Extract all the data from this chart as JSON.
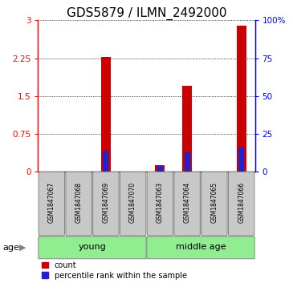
{
  "title": "GDS5879 / ILMN_2492000",
  "samples": [
    "GSM1847067",
    "GSM1847068",
    "GSM1847069",
    "GSM1847070",
    "GSM1847063",
    "GSM1847064",
    "GSM1847065",
    "GSM1847066"
  ],
  "count_values": [
    0.0,
    0.0,
    2.27,
    0.0,
    0.13,
    1.7,
    0.0,
    2.9
  ],
  "percentile_values": [
    0.0,
    0.0,
    14.0,
    0.0,
    4.0,
    13.0,
    0.0,
    16.0
  ],
  "groups": [
    {
      "label": "young",
      "start": 0,
      "end": 4,
      "color": "#90EE90"
    },
    {
      "label": "middle age",
      "start": 4,
      "end": 8,
      "color": "#90EE90"
    }
  ],
  "age_label": "age",
  "ylim_left": [
    0,
    3
  ],
  "ylim_right": [
    0,
    100
  ],
  "yticks_left": [
    0,
    0.75,
    1.5,
    2.25,
    3
  ],
  "yticks_right": [
    0,
    25,
    50,
    75,
    100
  ],
  "ytick_labels_right": [
    "0",
    "25",
    "50",
    "75",
    "100%"
  ],
  "bar_color_red": "#CC0000",
  "bar_color_blue": "#2222CC",
  "red_bar_width": 0.35,
  "blue_bar_width": 0.2,
  "legend_count": "count",
  "legend_percentile": "percentile rank within the sample",
  "grid_color": "black",
  "grid_style": "dotted",
  "bg_color": "white",
  "sample_box_color": "#C8C8C8",
  "title_fontsize": 11,
  "tick_fontsize": 7.5,
  "sample_fontsize": 5.5,
  "group_fontsize": 8,
  "legend_fontsize": 7
}
